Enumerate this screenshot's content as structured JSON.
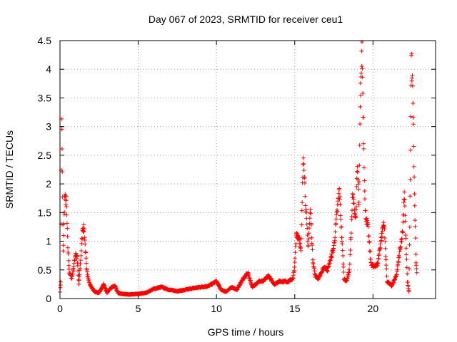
{
  "chart_data": {
    "type": "scatter",
    "title": "Day 067 of 2023, SRMTID for receiver ceu1",
    "xlabel": "GPS time / hours",
    "ylabel": "SRMTID / TECUs",
    "xlim": [
      0,
      24
    ],
    "ylim": [
      0,
      4.5
    ],
    "grid": true,
    "marker": "+",
    "color": "#ff0000",
    "xticks": [
      0,
      5,
      10,
      15,
      20
    ],
    "xtick_labels": [
      "0",
      "5",
      "10",
      "15",
      "20"
    ],
    "yticks": [
      0,
      0.5,
      1,
      1.5,
      2,
      2.5,
      3,
      3.5,
      4,
      4.5
    ],
    "ytick_labels": [
      "0",
      "0.5",
      "1",
      "1.5",
      "2",
      "2.5",
      "3",
      "3.5",
      "4",
      "4.5"
    ],
    "series": [
      {
        "name": "SRMTID",
        "profile": [
          [
            0.0,
            0.12
          ],
          [
            0.05,
            0.3
          ],
          [
            0.1,
            3.2
          ],
          [
            0.15,
            2.2
          ],
          [
            0.2,
            0.8
          ],
          [
            0.3,
            1.75
          ],
          [
            0.4,
            1.7
          ],
          [
            0.5,
            0.9
          ],
          [
            0.6,
            0.45
          ],
          [
            0.75,
            0.35
          ],
          [
            0.9,
            0.6
          ],
          [
            1.0,
            0.8
          ],
          [
            1.1,
            0.7
          ],
          [
            1.2,
            0.25
          ],
          [
            1.3,
            0.6
          ],
          [
            1.45,
            1.25
          ],
          [
            1.55,
            1.2
          ],
          [
            1.7,
            0.5
          ],
          [
            1.9,
            0.25
          ],
          [
            2.2,
            0.12
          ],
          [
            2.5,
            0.1
          ],
          [
            2.8,
            0.25
          ],
          [
            3.0,
            0.1
          ],
          [
            3.3,
            0.2
          ],
          [
            3.5,
            0.22
          ],
          [
            3.7,
            0.1
          ],
          [
            4.0,
            0.08
          ],
          [
            4.5,
            0.07
          ],
          [
            5.0,
            0.08
          ],
          [
            5.5,
            0.1
          ],
          [
            6.0,
            0.17
          ],
          [
            6.5,
            0.2
          ],
          [
            7.0,
            0.15
          ],
          [
            7.5,
            0.13
          ],
          [
            8.0,
            0.15
          ],
          [
            8.5,
            0.18
          ],
          [
            9.0,
            0.2
          ],
          [
            9.5,
            0.22
          ],
          [
            10.0,
            0.3
          ],
          [
            10.3,
            0.15
          ],
          [
            10.6,
            0.12
          ],
          [
            11.0,
            0.2
          ],
          [
            11.3,
            0.15
          ],
          [
            11.6,
            0.3
          ],
          [
            12.0,
            0.45
          ],
          [
            12.3,
            0.2
          ],
          [
            12.7,
            0.3
          ],
          [
            13.0,
            0.3
          ],
          [
            13.3,
            0.4
          ],
          [
            13.7,
            0.25
          ],
          [
            14.0,
            0.3
          ],
          [
            14.3,
            0.3
          ],
          [
            14.6,
            0.3
          ],
          [
            14.9,
            0.35
          ],
          [
            15.0,
            0.6
          ],
          [
            15.1,
            1.15
          ],
          [
            15.3,
            1.05
          ],
          [
            15.4,
            0.8
          ],
          [
            15.55,
            2.6
          ],
          [
            15.7,
            1.6
          ],
          [
            15.85,
            0.9
          ],
          [
            16.0,
            1.55
          ],
          [
            16.15,
            0.7
          ],
          [
            16.3,
            0.4
          ],
          [
            16.5,
            0.35
          ],
          [
            16.7,
            0.45
          ],
          [
            16.9,
            0.55
          ],
          [
            17.1,
            0.5
          ],
          [
            17.3,
            0.7
          ],
          [
            17.5,
            0.9
          ],
          [
            17.7,
            1.5
          ],
          [
            17.85,
            1.9
          ],
          [
            18.0,
            1.1
          ],
          [
            18.15,
            0.35
          ],
          [
            18.3,
            0.3
          ],
          [
            18.5,
            0.5
          ],
          [
            18.7,
            1.8
          ],
          [
            18.9,
            1.4
          ],
          [
            19.0,
            2.3
          ],
          [
            19.1,
            1.6
          ],
          [
            19.2,
            3.6
          ],
          [
            19.3,
            4.35
          ],
          [
            19.4,
            2.85
          ],
          [
            19.5,
            1.5
          ],
          [
            19.7,
            1.2
          ],
          [
            19.85,
            0.65
          ],
          [
            20.0,
            0.55
          ],
          [
            20.3,
            0.6
          ],
          [
            20.5,
            1.0
          ],
          [
            20.7,
            1.35
          ],
          [
            20.9,
            0.3
          ],
          [
            21.2,
            0.22
          ],
          [
            21.5,
            0.4
          ],
          [
            21.7,
            0.8
          ],
          [
            21.9,
            1.2
          ],
          [
            22.0,
            1.9
          ],
          [
            22.1,
            1.0
          ],
          [
            22.2,
            0.3
          ],
          [
            22.3,
            0.12
          ],
          [
            22.4,
            2.5
          ],
          [
            22.45,
            4.2
          ],
          [
            22.55,
            3.5
          ],
          [
            22.65,
            1.8
          ],
          [
            22.75,
            0.6
          ],
          [
            22.8,
            0.45
          ]
        ]
      }
    ]
  }
}
